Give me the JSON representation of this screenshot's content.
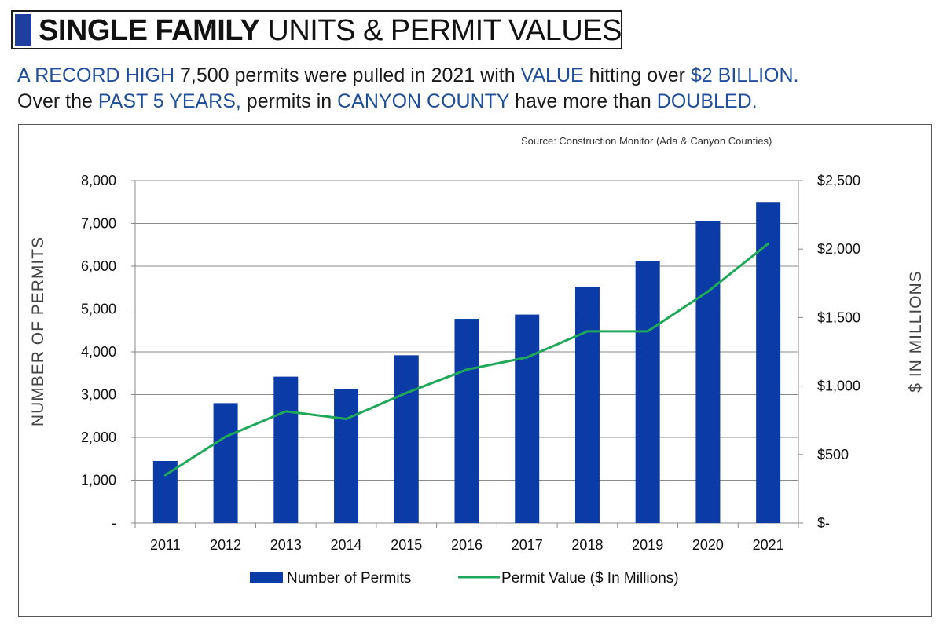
{
  "title": {
    "bold": "SINGLE FAMILY",
    "light": "UNITS & PERMIT VALUES"
  },
  "subtitle": {
    "line1": [
      {
        "text": "A RECORD HIGH",
        "hl": true
      },
      {
        "text": " 7,500 permits were pulled in 2021 with ",
        "hl": false
      },
      {
        "text": "VALUE",
        "hl": true
      },
      {
        "text": " hitting over ",
        "hl": false
      },
      {
        "text": "$2 BILLION.",
        "hl": true
      }
    ],
    "line2": [
      {
        "text": "Over the ",
        "hl": false
      },
      {
        "text": "PAST 5 YEARS,",
        "hl": true
      },
      {
        "text": " permits in ",
        "hl": false
      },
      {
        "text": "CANYON COUNTY",
        "hl": true
      },
      {
        "text": " have more than ",
        "hl": false
      },
      {
        "text": "DOUBLED.",
        "hl": true
      }
    ]
  },
  "source": "Source: Construction Monitor  (Ada & Canyon Counties)",
  "colors": {
    "bar": "#0b3ba6",
    "line": "#1fa85a",
    "highlight": "#1f4e9c",
    "title_bar": "#1f3f9f"
  },
  "chart_data": {
    "type": "bar",
    "categories": [
      "2011",
      "2012",
      "2013",
      "2014",
      "2015",
      "2016",
      "2017",
      "2018",
      "2019",
      "2020",
      "2021"
    ],
    "series": [
      {
        "name": "Number of Permits",
        "type": "bar",
        "axis": "left",
        "values": [
          1450,
          2800,
          3420,
          3130,
          3920,
          4770,
          4870,
          5520,
          6110,
          7060,
          7500
        ]
      },
      {
        "name": "Permit Value ($ In Millions)",
        "type": "line",
        "axis": "right",
        "values": [
          350,
          630,
          815,
          760,
          950,
          1120,
          1210,
          1400,
          1400,
          1690,
          2040
        ]
      }
    ],
    "ylabel": "NUMBER OF PERMITS",
    "ylabel_right": "$ IN MILLIONS",
    "ylim": [
      0,
      8000
    ],
    "ylim_right": [
      0,
      2500
    ],
    "yticks": [
      {
        "v": 0,
        "label": "-"
      },
      {
        "v": 1000,
        "label": "1,000"
      },
      {
        "v": 2000,
        "label": "2,000"
      },
      {
        "v": 3000,
        "label": "3,000"
      },
      {
        "v": 4000,
        "label": "4,000"
      },
      {
        "v": 5000,
        "label": "5,000"
      },
      {
        "v": 6000,
        "label": "6,000"
      },
      {
        "v": 7000,
        "label": "7,000"
      },
      {
        "v": 8000,
        "label": "8,000"
      }
    ],
    "yticks_right": [
      {
        "v": 0,
        "label": "$-"
      },
      {
        "v": 500,
        "label": "$500"
      },
      {
        "v": 1000,
        "label": "$1,000"
      },
      {
        "v": 1500,
        "label": "$1,500"
      },
      {
        "v": 2000,
        "label": "$2,000"
      },
      {
        "v": 2500,
        "label": "$2,500"
      }
    ],
    "grid": true,
    "legend": "bottom"
  }
}
